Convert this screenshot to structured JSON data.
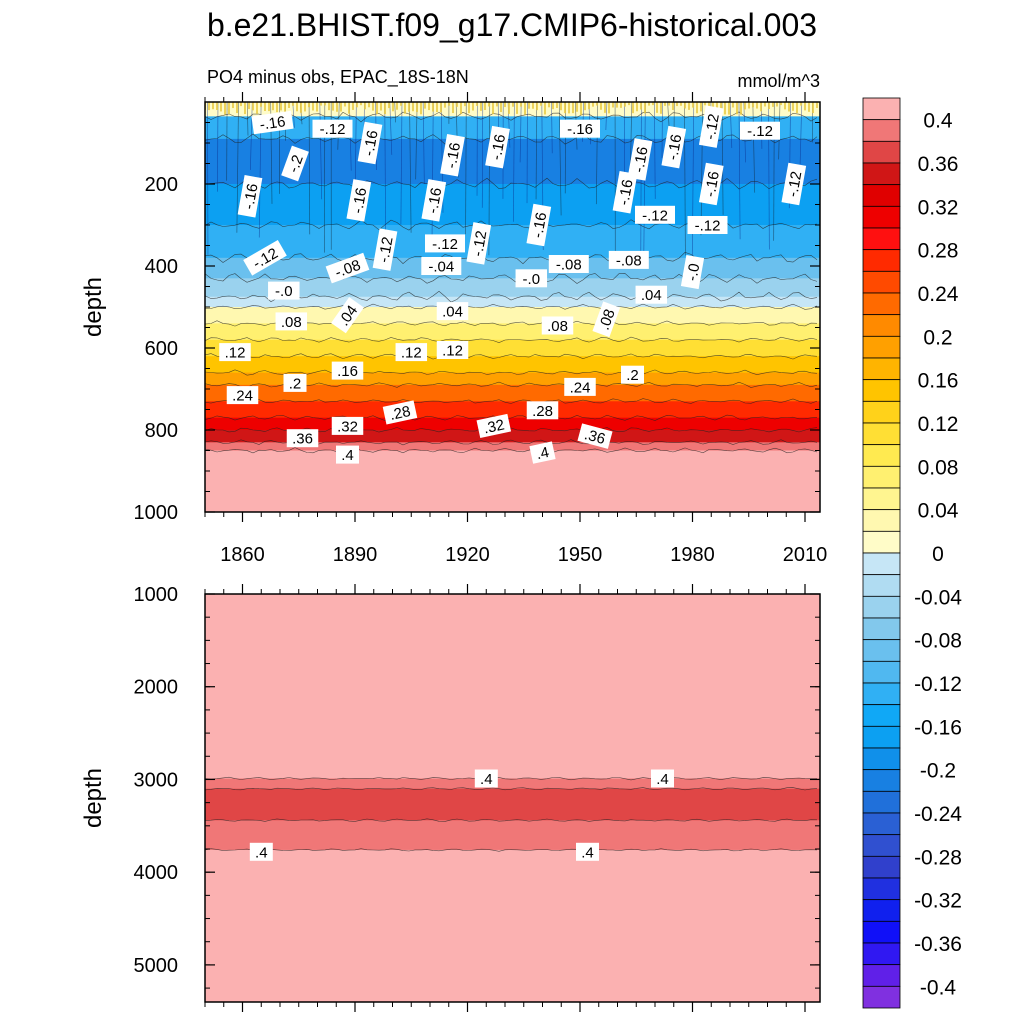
{
  "chart_data": {
    "type": "heatmap",
    "title": "b.e21.BHIST.f09_g17.CMIP6-historical.003",
    "subtitle": "PO4 minus obs, EPAC_18S-18N",
    "units": "mmol/m^3",
    "x_label": "",
    "x_range": [
      1850,
      2014
    ],
    "x_ticks": [
      1860,
      1890,
      1920,
      1950,
      1980,
      2010
    ],
    "x_tick_labels": [
      "1860",
      "1890",
      "1920",
      "1950",
      "1980",
      "2010"
    ],
    "panels": [
      {
        "name": "upper",
        "ylabel": "depth",
        "ylim": [
          0,
          1000
        ],
        "y_ticks": [
          200,
          400,
          600,
          800,
          1000
        ],
        "y_tick_labels": [
          "200",
          "400",
          "600",
          "800",
          "1000"
        ],
        "depth_bands": [
          {
            "top": 0,
            "bottom": 35,
            "value": 0.02
          },
          {
            "top": 35,
            "bottom": 90,
            "value": -0.12
          },
          {
            "top": 90,
            "bottom": 200,
            "value": -0.2
          },
          {
            "top": 200,
            "bottom": 300,
            "value": -0.16
          },
          {
            "top": 300,
            "bottom": 380,
            "value": -0.12
          },
          {
            "top": 380,
            "bottom": 430,
            "value": -0.08
          },
          {
            "top": 430,
            "bottom": 475,
            "value": -0.04
          },
          {
            "top": 475,
            "bottom": 500,
            "value": -0.0
          },
          {
            "top": 500,
            "bottom": 540,
            "value": 0.04
          },
          {
            "top": 540,
            "bottom": 580,
            "value": 0.08
          },
          {
            "top": 580,
            "bottom": 620,
            "value": 0.12
          },
          {
            "top": 620,
            "bottom": 660,
            "value": 0.16
          },
          {
            "top": 660,
            "bottom": 690,
            "value": 0.2
          },
          {
            "top": 690,
            "bottom": 730,
            "value": 0.24
          },
          {
            "top": 730,
            "bottom": 770,
            "value": 0.28
          },
          {
            "top": 770,
            "bottom": 800,
            "value": 0.32
          },
          {
            "top": 800,
            "bottom": 830,
            "value": 0.36
          },
          {
            "top": 830,
            "bottom": 850,
            "value": 0.4
          },
          {
            "top": 850,
            "bottom": 1000,
            "value": 0.44
          }
        ],
        "contour_labels": [
          {
            "text": "-.16",
            "x": 1868,
            "y": 50,
            "rot": -8
          },
          {
            "text": "-.12",
            "x": 1884,
            "y": 65,
            "rot": 0
          },
          {
            "text": "-.16",
            "x": 1894,
            "y": 100,
            "rot": -80
          },
          {
            "text": "-.16",
            "x": 1916,
            "y": 130,
            "rot": -80
          },
          {
            "text": "-.16",
            "x": 1928,
            "y": 110,
            "rot": -80
          },
          {
            "text": "-.16",
            "x": 1950,
            "y": 65,
            "rot": 0
          },
          {
            "text": "-.16",
            "x": 1966,
            "y": 140,
            "rot": -80
          },
          {
            "text": "-.16",
            "x": 1975,
            "y": 110,
            "rot": -80
          },
          {
            "text": "-.12",
            "x": 1985,
            "y": 60,
            "rot": -80
          },
          {
            "text": "-.12",
            "x": 1998,
            "y": 70,
            "rot": 0
          },
          {
            "text": "-.2",
            "x": 1874,
            "y": 150,
            "rot": -70
          },
          {
            "text": "-.16",
            "x": 1862,
            "y": 230,
            "rot": -80
          },
          {
            "text": "-.16",
            "x": 1891,
            "y": 240,
            "rot": -80
          },
          {
            "text": "-.16",
            "x": 1911,
            "y": 240,
            "rot": -80
          },
          {
            "text": "-.16",
            "x": 1985,
            "y": 200,
            "rot": -80
          },
          {
            "text": "-.12",
            "x": 2007,
            "y": 200,
            "rot": -80
          },
          {
            "text": "-.16",
            "x": 1962,
            "y": 220,
            "rot": -80
          },
          {
            "text": "-.12",
            "x": 1970,
            "y": 275,
            "rot": 0
          },
          {
            "text": "-.12",
            "x": 1984,
            "y": 300,
            "rot": 0
          },
          {
            "text": "-.16",
            "x": 1939,
            "y": 300,
            "rot": -80
          },
          {
            "text": "-.12",
            "x": 1923,
            "y": 345,
            "rot": -80
          },
          {
            "text": "-.12",
            "x": 1898,
            "y": 360,
            "rot": -80
          },
          {
            "text": "-.12",
            "x": 1866,
            "y": 380,
            "rot": -30
          },
          {
            "text": "-.12",
            "x": 1914,
            "y": 345,
            "rot": 0
          },
          {
            "text": "-.08",
            "x": 1888,
            "y": 405,
            "rot": -20
          },
          {
            "text": "-.08",
            "x": 1947,
            "y": 395,
            "rot": 0
          },
          {
            "text": "-.08",
            "x": 1963,
            "y": 385,
            "rot": 0
          },
          {
            "text": "-.04",
            "x": 1913,
            "y": 400,
            "rot": 0
          },
          {
            "text": "-.0",
            "x": 1937,
            "y": 430,
            "rot": 0
          },
          {
            "text": "-.0",
            "x": 1980,
            "y": 415,
            "rot": -80
          },
          {
            "text": "-.0",
            "x": 1871,
            "y": 460,
            "rot": 0
          },
          {
            "text": ".04",
            "x": 1888,
            "y": 520,
            "rot": -55
          },
          {
            "text": ".04",
            "x": 1916,
            "y": 510,
            "rot": 0
          },
          {
            "text": ".04",
            "x": 1969,
            "y": 470,
            "rot": 0
          },
          {
            "text": ".08",
            "x": 1873,
            "y": 535,
            "rot": 0
          },
          {
            "text": ".08",
            "x": 1944,
            "y": 545,
            "rot": 0
          },
          {
            "text": ".08",
            "x": 1957,
            "y": 530,
            "rot": -70
          },
          {
            "text": ".12",
            "x": 1858,
            "y": 610,
            "rot": 0
          },
          {
            "text": ".12",
            "x": 1905,
            "y": 610,
            "rot": 0
          },
          {
            "text": ".12",
            "x": 1916,
            "y": 605,
            "rot": 0
          },
          {
            "text": ".16",
            "x": 1888,
            "y": 655,
            "rot": 0
          },
          {
            "text": ".2",
            "x": 1874,
            "y": 685,
            "rot": 0
          },
          {
            "text": ".2",
            "x": 1964,
            "y": 665,
            "rot": 0
          },
          {
            "text": ".24",
            "x": 1860,
            "y": 715,
            "rot": 0
          },
          {
            "text": ".24",
            "x": 1950,
            "y": 695,
            "rot": 0
          },
          {
            "text": ".28",
            "x": 1902,
            "y": 757,
            "rot": -12
          },
          {
            "text": ".28",
            "x": 1940,
            "y": 752,
            "rot": 0
          },
          {
            "text": ".32",
            "x": 1888,
            "y": 790,
            "rot": 0
          },
          {
            "text": ".32",
            "x": 1927,
            "y": 790,
            "rot": -12
          },
          {
            "text": ".36",
            "x": 1876,
            "y": 820,
            "rot": 0
          },
          {
            "text": ".36",
            "x": 1954,
            "y": 815,
            "rot": 15
          },
          {
            "text": ".4",
            "x": 1888,
            "y": 860,
            "rot": 0
          },
          {
            "text": ".4",
            "x": 1940,
            "y": 855,
            "rot": -12
          }
        ]
      },
      {
        "name": "lower",
        "ylabel": "depth",
        "ylim": [
          1000,
          5400
        ],
        "y_ticks": [
          1000,
          2000,
          3000,
          4000,
          5000
        ],
        "y_tick_labels": [
          "1000",
          "2000",
          "3000",
          "4000",
          "5000"
        ],
        "depth_bands": [
          {
            "top": 1000,
            "bottom": 2990,
            "value": 0.44
          },
          {
            "top": 2990,
            "bottom": 3100,
            "value": 0.4
          },
          {
            "top": 3100,
            "bottom": 3440,
            "value": 0.38
          },
          {
            "top": 3440,
            "bottom": 3760,
            "value": 0.4
          },
          {
            "top": 3760,
            "bottom": 5400,
            "value": 0.44
          }
        ],
        "contour_labels": [
          {
            "text": ".4",
            "x": 1925,
            "y": 2990,
            "rot": 0
          },
          {
            "text": ".4",
            "x": 1972,
            "y": 2990,
            "rot": 0
          },
          {
            "text": ".4",
            "x": 1865,
            "y": 3780,
            "rot": 0
          },
          {
            "text": ".4",
            "x": 1952,
            "y": 3780,
            "rot": 0
          }
        ]
      }
    ],
    "colorbar": {
      "label_values": [
        0.4,
        0.36,
        0.32,
        0.28,
        0.24,
        0.2,
        0.16,
        0.12,
        0.08,
        0.04,
        0,
        -0.04,
        -0.08,
        -0.12,
        -0.16,
        -0.2,
        -0.24,
        -0.28,
        -0.32,
        -0.36,
        -0.4
      ],
      "labels": [
        "0.4",
        "0.36",
        "0.32",
        "0.28",
        "0.24",
        "0.2",
        "0.16",
        "0.12",
        "0.08",
        "0.04",
        "0",
        "-0.04",
        "-0.08",
        "-0.12",
        "-0.16",
        "-0.2",
        "-0.24",
        "-0.28",
        "-0.32",
        "-0.36",
        "-0.4"
      ],
      "colors_top_to_bottom": [
        "#fbb1b1",
        "#f07777",
        "#e04646",
        "#d01616",
        "#e00000",
        "#ee0000",
        "#ff1010",
        "#ff2a00",
        "#ff4a00",
        "#ff6a00",
        "#ff8a00",
        "#ffa000",
        "#ffb400",
        "#ffc400",
        "#ffd21a",
        "#ffdf34",
        "#ffea50",
        "#fff070",
        "#fff590",
        "#fff8b0",
        "#fffcc8",
        "#c6e6f6",
        "#b0dcf2",
        "#9ad2ee",
        "#82c8ec",
        "#6ac0ee",
        "#50b8f0",
        "#30b0f4",
        "#10a8f6",
        "#0ca0f2",
        "#1090ea",
        "#1880e2",
        "#2070da",
        "#2a60d4",
        "#3050d0",
        "#3040cc",
        "#2030e0",
        "#1020ee",
        "#1010f8",
        "#3018f2",
        "#6020e8",
        "#8030e0"
      ]
    }
  }
}
